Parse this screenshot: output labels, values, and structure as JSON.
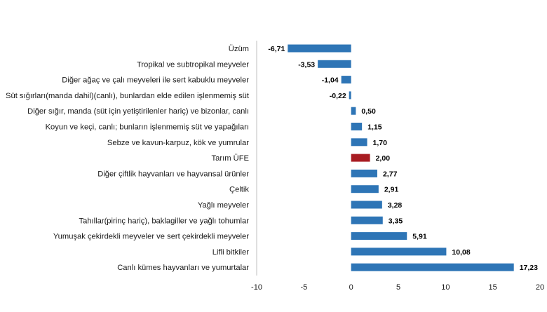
{
  "chart_data": {
    "type": "bar",
    "orientation": "horizontal",
    "title": "",
    "xlabel": "",
    "ylabel": "",
    "categories": [
      "Üzüm",
      "Tropikal ve subtropikal meyveler",
      "Diğer ağaç ve çalı meyveleri ile sert kabuklu meyveler",
      "Süt sığırları(manda dahil)(canlı), bunlardan elde edilen işlenmemiş süt",
      "Diğer sığır, manda (süt için yetiştirilenler hariç) ve bizonlar, canlı",
      "Koyun ve keçi, canlı; bunların işlenmemiş süt ve yapağıları",
      "Sebze ve kavun-karpuz, kök ve yumrular",
      "Tarım ÜFE",
      "Diğer çiftlik hayvanları ve hayvansal ürünler",
      "Çeltik",
      "Yağlı meyveler",
      "Tahıllar(pirinç hariç), baklagiller ve yağlı tohumlar",
      "Yumuşak çekirdekli meyveler ve sert çekirdekli meyveler",
      "Lifli bitkiler",
      "Canlı kümes hayvanları ve yumurtalar"
    ],
    "values": [
      -6.71,
      -3.53,
      -1.04,
      -0.22,
      0.5,
      1.15,
      1.7,
      2.0,
      2.77,
      2.91,
      3.28,
      3.35,
      5.91,
      10.08,
      17.23
    ],
    "value_labels": [
      "-6,71",
      "-3,53",
      "-1,04",
      "-0,22",
      "0,50",
      "1,15",
      "1,70",
      "2,00",
      "2,77",
      "2,91",
      "3,28",
      "3,35",
      "5,91",
      "10,08",
      "17,23"
    ],
    "highlight_category": "Tarım ÜFE",
    "xlim": [
      -10,
      20
    ],
    "xticks": [
      -10,
      -5,
      0,
      5,
      10,
      15,
      20
    ],
    "xtick_labels": [
      "-10",
      "-5",
      "0",
      "5",
      "10",
      "15",
      "20"
    ],
    "grid": false,
    "legend": "none",
    "colors": {
      "bar": "#2E75B6",
      "highlight": "#A81C22",
      "axis": "#BFBFBF"
    }
  }
}
